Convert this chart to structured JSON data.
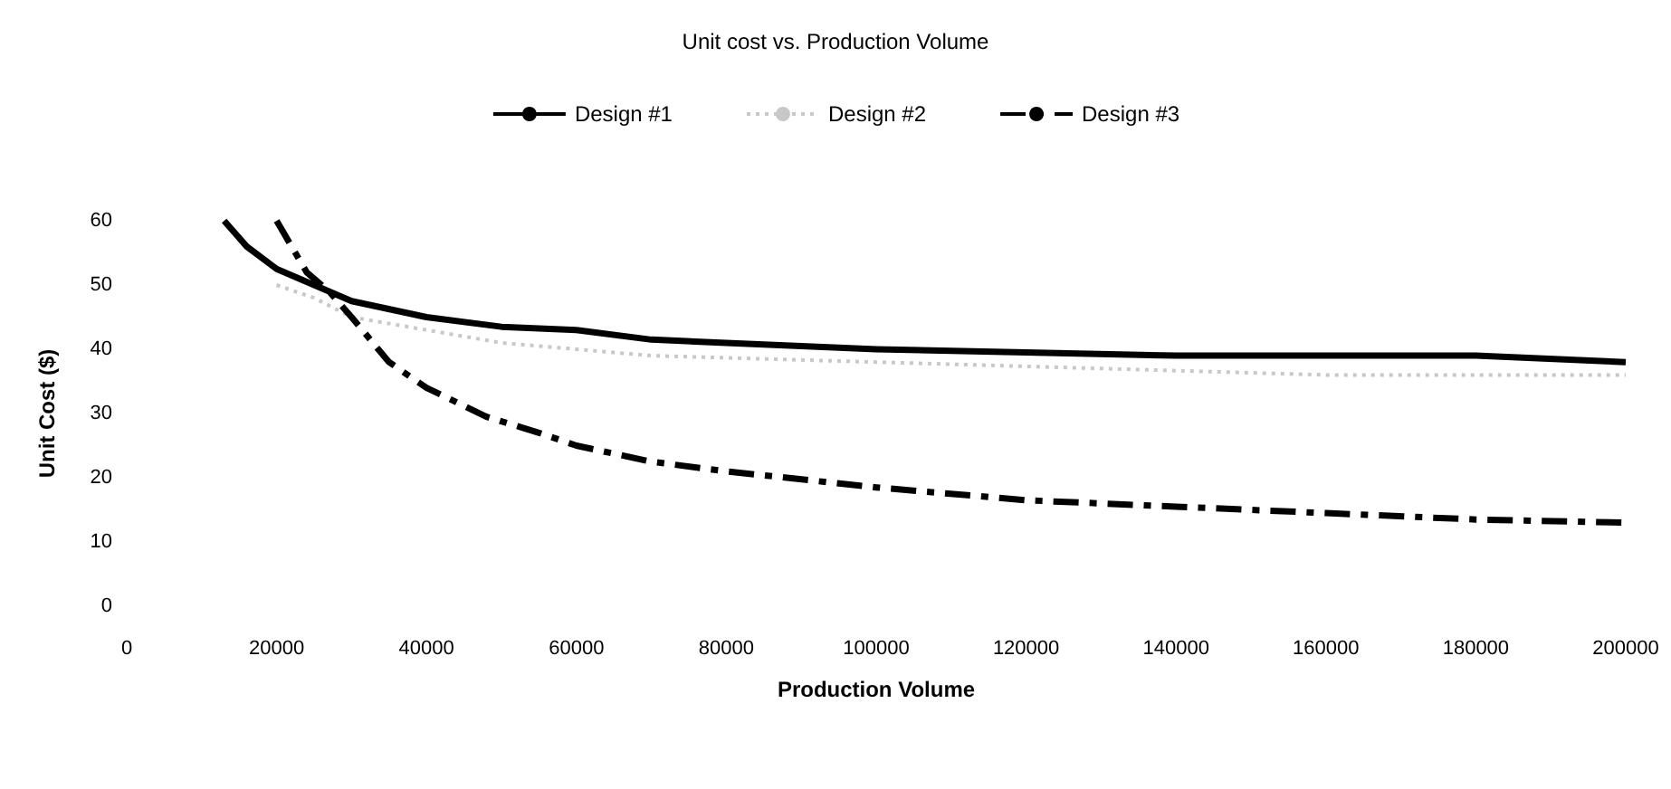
{
  "chart_data": {
    "type": "line",
    "title": "Unit cost vs. Production Volume",
    "xlabel": "Production Volume",
    "ylabel": "Unit Cost ($)",
    "xlim": [
      0,
      200000
    ],
    "xticks": [
      0,
      20000,
      40000,
      60000,
      80000,
      100000,
      120000,
      140000,
      160000,
      180000,
      200000
    ],
    "ylim": [
      0,
      60
    ],
    "yticks": [
      0,
      10,
      20,
      30,
      40,
      50,
      60
    ],
    "grid": false,
    "legend": "top",
    "marker": "none",
    "series": [
      {
        "name": "Design #1",
        "color": "#000000",
        "line_style": "solid",
        "x": [
          13000,
          16000,
          20000,
          25000,
          30000,
          40000,
          50000,
          60000,
          70000,
          80000,
          100000,
          120000,
          140000,
          160000,
          180000,
          200000
        ],
        "values": [
          60,
          56,
          52.5,
          50,
          47.5,
          45,
          43.5,
          43,
          41.5,
          41,
          40,
          39.5,
          39,
          39,
          39,
          38
        ]
      },
      {
        "name": "Design #2",
        "color": "#c8c8c8",
        "line_style": "dotted",
        "x": [
          20000,
          25000,
          30000,
          40000,
          50000,
          60000,
          70000,
          100000,
          130000,
          160000,
          200000
        ],
        "values": [
          50,
          48,
          45,
          43,
          41,
          40,
          39,
          38,
          37,
          36,
          36
        ]
      },
      {
        "name": "Design #3",
        "color": "#000000",
        "line_style": "dashed",
        "x": [
          20000,
          24000,
          27000,
          30000,
          35000,
          40000,
          48000,
          55000,
          60000,
          70000,
          80000,
          100000,
          120000,
          140000,
          160000,
          180000,
          200000
        ],
        "values": [
          60,
          52,
          49,
          45,
          38,
          34,
          29.5,
          27,
          25,
          22.5,
          21,
          18.5,
          16.5,
          15.5,
          14.5,
          13.5,
          13
        ]
      }
    ]
  }
}
